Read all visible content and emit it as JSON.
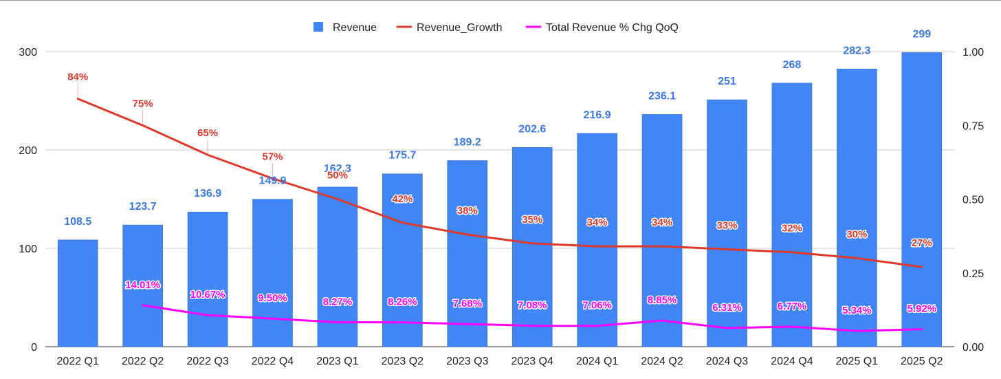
{
  "chart_data": {
    "type": "bar",
    "categories": [
      "2022 Q1",
      "2022 Q2",
      "2022 Q3",
      "2022 Q4",
      "2023 Q1",
      "2023 Q2",
      "2023 Q3",
      "2023 Q4",
      "2024 Q1",
      "2024 Q2",
      "2024 Q3",
      "2024 Q4",
      "2025 Q1",
      "2025 Q2"
    ],
    "series": [
      {
        "name": "Revenue",
        "type": "bar",
        "axis": "left",
        "color": "#4285f4",
        "label_color": "#3b78e7",
        "values": [
          108.5,
          123.7,
          136.9,
          149.9,
          162.3,
          175.7,
          189.2,
          202.6,
          216.9,
          236.1,
          251,
          268,
          282.3,
          299
        ],
        "labels": [
          "108.5",
          "123.7",
          "136.9",
          "149.9",
          "162.3",
          "175.7",
          "189.2",
          "202.6",
          "216.9",
          "236.1",
          "251",
          "268",
          "282.3",
          "299"
        ]
      },
      {
        "name": "Revenue_Growth",
        "type": "line",
        "axis": "right",
        "color": "#e0392b",
        "values": [
          0.84,
          0.75,
          0.65,
          0.57,
          0.5,
          0.42,
          0.38,
          0.35,
          0.34,
          0.34,
          0.33,
          0.32,
          0.3,
          0.27
        ],
        "labels": [
          "84%",
          "75%",
          "65%",
          "57%",
          "50%",
          "42%",
          "38%",
          "35%",
          "34%",
          "34%",
          "33%",
          "32%",
          "30%",
          "27%"
        ]
      },
      {
        "name": "Total Revenue % Chg QoQ",
        "type": "line",
        "axis": "right",
        "color": "#ff00ff",
        "values": [
          null,
          0.1401,
          0.1067,
          0.095,
          0.0827,
          0.0826,
          0.0768,
          0.0708,
          0.0706,
          0.0885,
          0.0631,
          0.0677,
          0.0534,
          0.0592
        ],
        "labels": [
          null,
          "14.01%",
          "10.67%",
          "9.50%",
          "8.27%",
          "8.26%",
          "7.68%",
          "7.08%",
          "7.06%",
          "8.85%",
          "6.31%",
          "6.77%",
          "5.34%",
          "5.92%"
        ]
      }
    ],
    "y_left": {
      "range": [
        0,
        300
      ],
      "ticks": [
        "0",
        "100",
        "200",
        "300"
      ],
      "tick_values": [
        0,
        100,
        200,
        300
      ]
    },
    "y_right": {
      "range": [
        0,
        1.0
      ],
      "ticks": [
        "0.00",
        "0.25",
        "0.50",
        "0.75",
        "1.00"
      ],
      "tick_values": [
        0,
        0.25,
        0.5,
        0.75,
        1.0
      ]
    },
    "grid": true,
    "legend": "top-center"
  }
}
